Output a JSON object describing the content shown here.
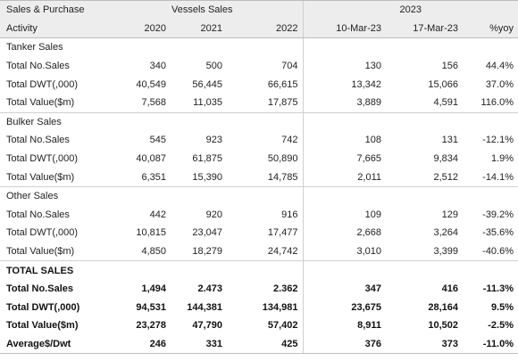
{
  "header": {
    "row1": {
      "col0": "Sales & Purchase",
      "vessels_sales": "Vessels Sales",
      "year2023": "2023"
    },
    "row2": {
      "col0": "Activity",
      "y2020": "2020",
      "y2021": "2021",
      "y2022": "2022",
      "d1": "10-Mar-23",
      "d2": "17-Mar-23",
      "yoy": "%yoy"
    }
  },
  "sections": [
    {
      "title": "Tanker Sales",
      "rows": [
        {
          "label": "Total No.Sales",
          "v2020": "340",
          "v2021": "500",
          "v2022": "704",
          "d1": "130",
          "d2": "156",
          "yoy": "44.4%"
        },
        {
          "label": "Total DWT(,000)",
          "v2020": "40,549",
          "v2021": "56,445",
          "v2022": "66,615",
          "d1": "13,342",
          "d2": "15,066",
          "yoy": "37.0%"
        },
        {
          "label": "Total Value($m)",
          "v2020": "7,568",
          "v2021": "11,035",
          "v2022": "17,875",
          "d1": "3,889",
          "d2": "4,591",
          "yoy": "116.0%"
        }
      ]
    },
    {
      "title": "Bulker Sales",
      "rows": [
        {
          "label": "Total No.Sales",
          "v2020": "545",
          "v2021": "923",
          "v2022": "742",
          "d1": "108",
          "d2": "131",
          "yoy": "-12.1%"
        },
        {
          "label": "Total DWT(,000)",
          "v2020": "40,087",
          "v2021": "61,875",
          "v2022": "50,890",
          "d1": "7,665",
          "d2": "9,834",
          "yoy": "1.9%"
        },
        {
          "label": "Total Value($m)",
          "v2020": "6,351",
          "v2021": "15,390",
          "v2022": "14,785",
          "d1": "2,011",
          "d2": "2,512",
          "yoy": "-14.1%"
        }
      ]
    },
    {
      "title": "Other Sales",
      "rows": [
        {
          "label": "Total No.Sales",
          "v2020": "442",
          "v2021": "920",
          "v2022": "916",
          "d1": "109",
          "d2": "129",
          "yoy": "-39.2%"
        },
        {
          "label": "Total DWT(,000)",
          "v2020": "10,815",
          "v2021": "23,047",
          "v2022": "17,477",
          "d1": "2,668",
          "d2": "3,264",
          "yoy": "-35.6%"
        },
        {
          "label": "Total Value($m)",
          "v2020": "4,850",
          "v2021": "18,279",
          "v2022": "24,742",
          "d1": "3,010",
          "d2": "3,399",
          "yoy": "-40.6%"
        }
      ]
    },
    {
      "title": "TOTAL SALES",
      "rows": [
        {
          "label": "Total No.Sales",
          "v2020": "1,494",
          "v2021": "2.473",
          "v2022": "2.362",
          "d1": "347",
          "d2": "416",
          "yoy": "-11.3%"
        },
        {
          "label": "Total DWT(,000)",
          "v2020": "94,531",
          "v2021": "144,381",
          "v2022": "134,981",
          "d1": "23,675",
          "d2": "28,164",
          "yoy": "9.5%"
        },
        {
          "label": "Total Value($m)",
          "v2020": "23,278",
          "v2021": "47,790",
          "v2022": "57,402",
          "d1": "8,911",
          "d2": "10,502",
          "yoy": "-2.5%"
        },
        {
          "label": "Average$/Dwt",
          "v2020": "246",
          "v2021": "331",
          "v2022": "425",
          "d1": "376",
          "d2": "373",
          "yoy": "-11.0%"
        }
      ]
    }
  ]
}
